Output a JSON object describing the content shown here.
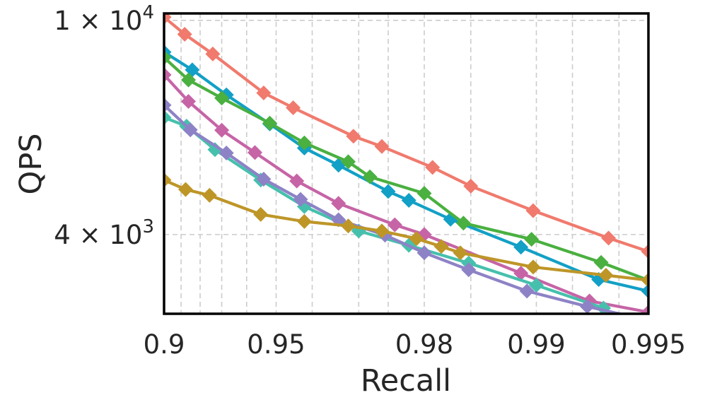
{
  "chart_data": {
    "type": "line",
    "xlabel": "Recall",
    "ylabel": "QPS",
    "x_scale": "-log10(1 - recall)",
    "y_scale": "log",
    "xlim": [
      0.9,
      0.995
    ],
    "ylim": [
      2850,
      10300
    ],
    "x_ticks": [
      {
        "value": 0.9,
        "label": "0.9"
      },
      {
        "value": 0.95,
        "label": "0.95"
      },
      {
        "value": 0.98,
        "label": "0.98"
      },
      {
        "value": 0.99,
        "label": "0.99"
      },
      {
        "value": 0.995,
        "label": "0.995"
      }
    ],
    "y_ticks": [
      {
        "value": 10000,
        "label_base": "1 × 10",
        "label_exp": "4"
      },
      {
        "value": 4000,
        "label_base": "4 × 10",
        "label_exp": "3"
      }
    ],
    "x_minor_grid": [
      0.91,
      0.92,
      0.93,
      0.94,
      0.96,
      0.97,
      0.975,
      0.985,
      0.992,
      0.994
    ],
    "grid": true,
    "legend": "none",
    "marker": "diamond",
    "series": [
      {
        "color": "#f07a6d",
        "points": [
          [
            0.9,
            10140
          ],
          [
            0.912,
            9420
          ],
          [
            0.926,
            8660
          ],
          [
            0.946,
            7330
          ],
          [
            0.955,
            6880
          ],
          [
            0.969,
            6090
          ],
          [
            0.974,
            5830
          ],
          [
            0.981,
            5330
          ],
          [
            0.985,
            4920
          ],
          [
            0.9898,
            4430
          ],
          [
            0.9936,
            3940
          ],
          [
            0.995,
            3720
          ]
        ]
      },
      {
        "color": "#12a0c6",
        "points": [
          [
            0.9,
            8730
          ],
          [
            0.916,
            8090
          ],
          [
            0.932,
            7270
          ],
          [
            0.948,
            6420
          ],
          [
            0.958,
            5790
          ],
          [
            0.966,
            5380
          ],
          [
            0.975,
            4810
          ],
          [
            0.978,
            4630
          ],
          [
            0.983,
            4270
          ],
          [
            0.989,
            3790
          ],
          [
            0.9932,
            3300
          ],
          [
            0.995,
            3140
          ]
        ]
      },
      {
        "color": "#4ab040",
        "points": [
          [
            0.9,
            8530
          ],
          [
            0.914,
            7750
          ],
          [
            0.93,
            7170
          ],
          [
            0.948,
            6440
          ],
          [
            0.958,
            5920
          ],
          [
            0.968,
            5460
          ],
          [
            0.972,
            5120
          ],
          [
            0.98,
            4770
          ],
          [
            0.9843,
            4200
          ],
          [
            0.9897,
            3920
          ],
          [
            0.9933,
            3550
          ],
          [
            0.995,
            3290
          ]
        ]
      },
      {
        "color": "#c664a6",
        "points": [
          [
            0.9,
            7920
          ],
          [
            0.914,
            7070
          ],
          [
            0.93,
            6250
          ],
          [
            0.943,
            5680
          ],
          [
            0.956,
            5030
          ],
          [
            0.966,
            4570
          ],
          [
            0.976,
            4170
          ],
          [
            0.98,
            4000
          ],
          [
            0.989,
            3390
          ],
          [
            0.9928,
            3010
          ],
          [
            0.995,
            2870
          ]
        ]
      },
      {
        "color": "#46c0ad",
        "points": [
          [
            0.9,
            6600
          ],
          [
            0.913,
            6360
          ],
          [
            0.927,
            5750
          ],
          [
            0.945,
            5050
          ],
          [
            0.958,
            4510
          ],
          [
            0.97,
            4060
          ],
          [
            0.978,
            3820
          ],
          [
            0.9848,
            3540
          ],
          [
            0.99,
            3220
          ],
          [
            0.9934,
            2920
          ]
        ]
      },
      {
        "color": "#8e82c6",
        "points": [
          [
            0.9,
            6960
          ],
          [
            0.915,
            6260
          ],
          [
            0.932,
            5670
          ],
          [
            0.946,
            5070
          ],
          [
            0.957,
            4650
          ],
          [
            0.966,
            4260
          ],
          [
            0.9745,
            3990
          ],
          [
            0.98,
            3700
          ],
          [
            0.9848,
            3440
          ],
          [
            0.9894,
            3140
          ],
          [
            0.9927,
            2940
          ],
          [
            0.995,
            2770
          ]
        ]
      },
      {
        "color": "#be9628",
        "points": [
          [
            0.9,
            5050
          ],
          [
            0.9125,
            4850
          ],
          [
            0.9245,
            4730
          ],
          [
            0.945,
            4360
          ],
          [
            0.958,
            4230
          ],
          [
            0.968,
            4150
          ],
          [
            0.974,
            4060
          ],
          [
            0.979,
            3930
          ],
          [
            0.982,
            3800
          ],
          [
            0.984,
            3700
          ],
          [
            0.9898,
            3480
          ],
          [
            0.9935,
            3360
          ],
          [
            0.995,
            3290
          ]
        ]
      }
    ]
  }
}
